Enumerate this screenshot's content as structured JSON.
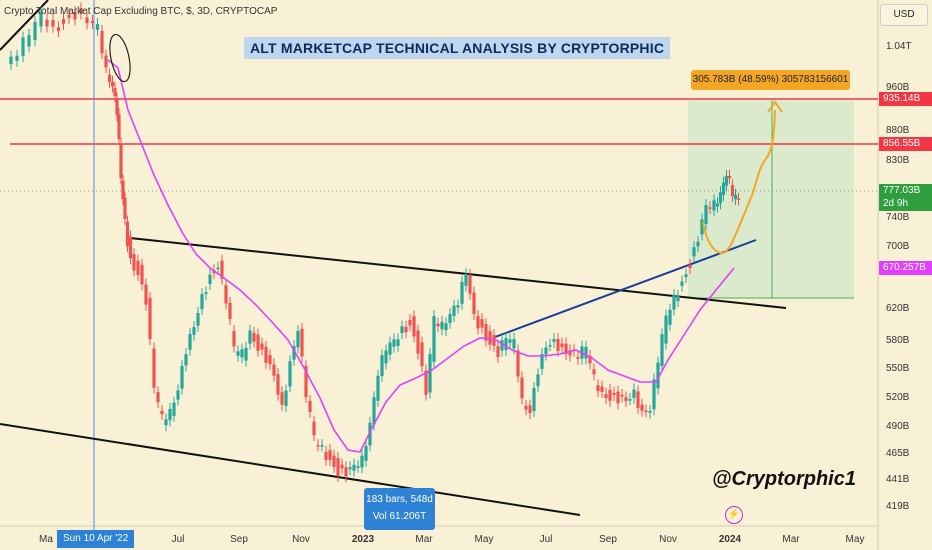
{
  "header": {
    "symbol_line": "Crypto Total Market Cap Excluding BTC, $, 3D, CRYPTOCAP",
    "currency": "USD"
  },
  "title": "ALT MARKETCAP TECHNICAL ANALYSIS BY CRYPTORPHIC",
  "signature": "@Cryptorphic1",
  "measure_label": "305.783B (48.59%) 305783156601",
  "range_tooltip": {
    "bars": "183 bars, 548d",
    "volume": "Vol 61.206T"
  },
  "crosshair_date": "Sun 10 Apr '22",
  "price_tags": {
    "upper_resistance": "935.14B",
    "lower_resistance": "856.55B",
    "current_price": "777.03B",
    "countdown": "2d 9h",
    "moving_average": "670.257B"
  },
  "flash_icon": "lightning-icon",
  "colors": {
    "background": "#f9f1d6",
    "up": "#26a69a",
    "down": "#ef5350",
    "ma": "#e040fb",
    "resistance": "#f23645",
    "trend_blue": "#1a3d9c",
    "projection": "#f5a623",
    "target_zone": "#cfe5c8"
  },
  "chart_data": {
    "type": "candlestick",
    "y_axis_ticks": [
      "1.04T",
      "960B",
      "880B",
      "830B",
      "740B",
      "700B",
      "620B",
      "580B",
      "550B",
      "520B",
      "490B",
      "465B",
      "441B",
      "419B"
    ],
    "x_axis_ticks": [
      "Ma",
      "Jul",
      "Sep",
      "Nov",
      "2023",
      "Mar",
      "May",
      "Jul",
      "Sep",
      "Nov",
      "2024",
      "Mar",
      "May"
    ],
    "horizontal_levels": [
      935.14,
      856.55
    ],
    "current_price": 777.03,
    "moving_average_last": 670.257,
    "target_gain": "305.783B (48.59%)"
  }
}
